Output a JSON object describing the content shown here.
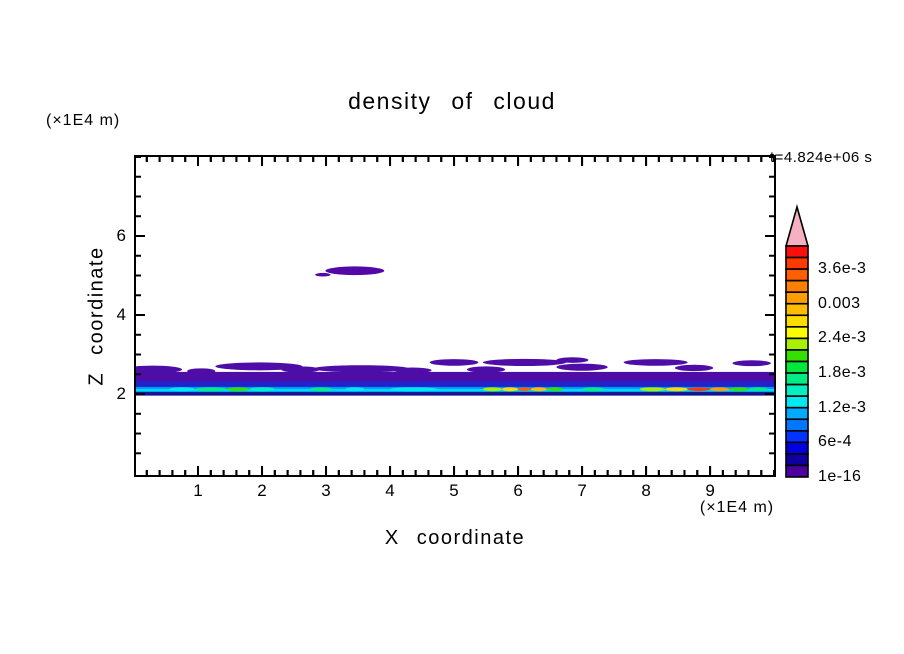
{
  "figure": {
    "title": "density of cloud",
    "time_label": "t=4.824e+06 s",
    "y_axis_unit": "(×1E4 m)",
    "x_axis_unit": "(×1E4 m)",
    "x_axis_label": "X coordinate",
    "y_axis_label": "Z coordinate"
  },
  "chart_data": {
    "type": "heatmap",
    "title": "density of cloud",
    "xlabel": "X coordinate",
    "ylabel": "Z coordinate",
    "x_unit": "(×1E4 m)",
    "y_unit": "(×1E4 m)",
    "time_annotation": "t=4.824e+06 s",
    "xlim": [
      0,
      10.03
    ],
    "ylim": [
      -0.1,
      8.05
    ],
    "x_major_ticks": [
      1,
      2,
      3,
      4,
      5,
      6,
      7,
      8,
      9
    ],
    "x_minor_step": 0.2,
    "y_major_ticks": [
      2,
      4,
      6
    ],
    "y_minor_step": 0.5,
    "grid": false,
    "legend_position": "right-colorbar",
    "colorbar": {
      "cells_top_to_bottom": [
        "#fb0f0c",
        "#ff3a00",
        "#ff5f00",
        "#ff8000",
        "#ff9e00",
        "#ffbc00",
        "#ffdc00",
        "#fdfd00",
        "#a8f000",
        "#35e000",
        "#00e83c",
        "#00ec85",
        "#00f0c0",
        "#00e9f2",
        "#00aaff",
        "#0077ff",
        "#0433ff",
        "#0000e0",
        "#0e00a0",
        "#4c00a0"
      ],
      "overflow_arrow_color": "#f6b1c1",
      "tick_labels_top_to_bottom": [
        "3.6e-3",
        "0.003",
        "2.4e-3",
        "1.8e-3",
        "1.2e-3",
        "6e-4",
        "1e-16"
      ],
      "tick_cells_from_bottom": [
        18,
        15,
        12,
        9,
        6,
        3,
        0
      ],
      "min_value_label": "1e-16",
      "value_step_per_cell": 0.0002
    },
    "cloud": {
      "strips": [
        {
          "x0": 0,
          "x1": 10.03,
          "z0": 2.28,
          "z1": 2.56,
          "color": "#4e0da6"
        },
        {
          "x0": 0,
          "x1": 10.03,
          "z0": 2.14,
          "z1": 2.32,
          "color": "#2222cc"
        },
        {
          "x0": 0,
          "x1": 10.03,
          "z0": 2.04,
          "z1": 2.18,
          "color": "#0099f0"
        },
        {
          "x0": 0,
          "x1": 10.03,
          "z0": 2.07,
          "z1": 2.13,
          "color": "#00d8f8"
        },
        {
          "x0": 0,
          "x1": 10.03,
          "z0": 1.96,
          "z1": 2.05,
          "color": "#141295"
        }
      ],
      "blobs": [
        {
          "x": 0.3,
          "z": 2.62,
          "rx": 0.45,
          "rz": 0.1,
          "color": "#4e0da6"
        },
        {
          "x": 1.05,
          "z": 2.58,
          "rx": 0.22,
          "rz": 0.07,
          "color": "#4e0da6"
        },
        {
          "x": 1.95,
          "z": 2.7,
          "rx": 0.68,
          "rz": 0.1,
          "color": "#4e0da6"
        },
        {
          "x": 2.6,
          "z": 2.62,
          "rx": 0.3,
          "rz": 0.08,
          "color": "#4e0da6"
        },
        {
          "x": 3.55,
          "z": 2.64,
          "rx": 0.75,
          "rz": 0.09,
          "color": "#4e0da6"
        },
        {
          "x": 4.35,
          "z": 2.6,
          "rx": 0.3,
          "rz": 0.07,
          "color": "#4e0da6"
        },
        {
          "x": 5.0,
          "z": 2.8,
          "rx": 0.38,
          "rz": 0.085,
          "color": "#4e0da6"
        },
        {
          "x": 5.5,
          "z": 2.62,
          "rx": 0.3,
          "rz": 0.08,
          "color": "#4e0da6"
        },
        {
          "x": 6.1,
          "z": 2.8,
          "rx": 0.65,
          "rz": 0.09,
          "color": "#4e0da6"
        },
        {
          "x": 6.85,
          "z": 2.86,
          "rx": 0.25,
          "rz": 0.07,
          "color": "#4e0da6"
        },
        {
          "x": 7.0,
          "z": 2.68,
          "rx": 0.4,
          "rz": 0.09,
          "color": "#4e0da6"
        },
        {
          "x": 8.15,
          "z": 2.8,
          "rx": 0.5,
          "rz": 0.085,
          "color": "#4e0da6"
        },
        {
          "x": 8.75,
          "z": 2.66,
          "rx": 0.3,
          "rz": 0.08,
          "color": "#4e0da6"
        },
        {
          "x": 9.65,
          "z": 2.78,
          "rx": 0.3,
          "rz": 0.075,
          "color": "#4e0da6"
        },
        {
          "x": 2.95,
          "z": 5.02,
          "rx": 0.12,
          "rz": 0.045,
          "color": "#5408a8"
        },
        {
          "x": 3.45,
          "z": 5.12,
          "rx": 0.46,
          "rz": 0.11,
          "color": "#5408a8"
        }
      ],
      "streaks": [
        {
          "x0": 0.55,
          "x1": 0.95,
          "z": 2.12,
          "rz": 0.05,
          "color": "#00e9f2"
        },
        {
          "x0": 0.95,
          "x1": 1.45,
          "z": 2.12,
          "rz": 0.05,
          "color": "#00ec85"
        },
        {
          "x0": 1.45,
          "x1": 1.8,
          "z": 2.12,
          "rz": 0.05,
          "color": "#35e000"
        },
        {
          "x0": 1.8,
          "x1": 2.2,
          "z": 2.12,
          "rz": 0.05,
          "color": "#00f0c0"
        },
        {
          "x0": 2.75,
          "x1": 3.1,
          "z": 2.12,
          "rz": 0.05,
          "color": "#00ec85"
        },
        {
          "x0": 3.3,
          "x1": 3.6,
          "z": 2.12,
          "rz": 0.05,
          "color": "#00e9f2"
        },
        {
          "x0": 4.0,
          "x1": 4.75,
          "z": 2.12,
          "rz": 0.05,
          "color": "#00e9f2"
        },
        {
          "x0": 5.45,
          "x1": 5.75,
          "z": 2.12,
          "rz": 0.05,
          "color": "#a8f000"
        },
        {
          "x0": 5.75,
          "x1": 6.0,
          "z": 2.12,
          "rz": 0.05,
          "color": "#ffdc00"
        },
        {
          "x0": 6.0,
          "x1": 6.2,
          "z": 2.12,
          "rz": 0.045,
          "color": "#ff5f00"
        },
        {
          "x0": 6.2,
          "x1": 6.45,
          "z": 2.12,
          "rz": 0.05,
          "color": "#ffbc00"
        },
        {
          "x0": 6.45,
          "x1": 6.7,
          "z": 2.12,
          "rz": 0.05,
          "color": "#35e000"
        },
        {
          "x0": 7.0,
          "x1": 7.35,
          "z": 2.12,
          "rz": 0.05,
          "color": "#00ec85"
        },
        {
          "x0": 7.9,
          "x1": 8.3,
          "z": 2.12,
          "rz": 0.05,
          "color": "#a8f000"
        },
        {
          "x0": 8.3,
          "x1": 8.65,
          "z": 2.12,
          "rz": 0.05,
          "color": "#ffdc00"
        },
        {
          "x0": 8.65,
          "x1": 9.0,
          "z": 2.12,
          "rz": 0.045,
          "color": "#ff3a00"
        },
        {
          "x0": 9.0,
          "x1": 9.3,
          "z": 2.12,
          "rz": 0.05,
          "color": "#ff9e00"
        },
        {
          "x0": 9.3,
          "x1": 9.6,
          "z": 2.12,
          "rz": 0.05,
          "color": "#35e000"
        },
        {
          "x0": 9.6,
          "x1": 9.9,
          "z": 2.12,
          "rz": 0.05,
          "color": "#00ec85"
        }
      ]
    }
  }
}
